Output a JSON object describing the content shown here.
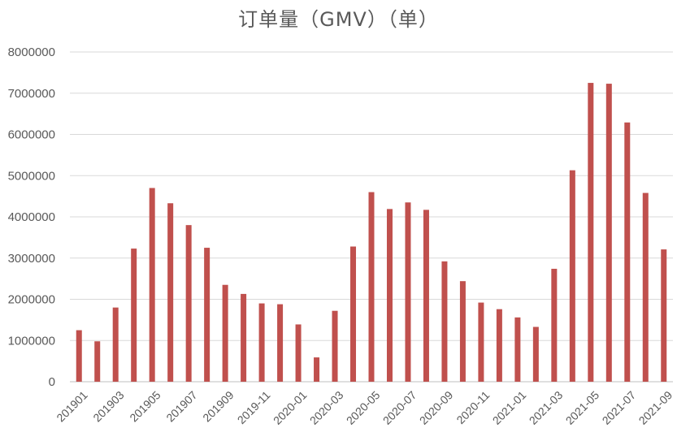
{
  "chart_data": {
    "type": "bar",
    "title": "订单量（GMV）（单）",
    "xlabel": "",
    "ylabel": "",
    "ylim": [
      0,
      8000000
    ],
    "yticks": [
      0,
      1000000,
      2000000,
      3000000,
      4000000,
      5000000,
      6000000,
      7000000,
      8000000
    ],
    "grid": true,
    "legend": "none",
    "bar_color": "#c0504d",
    "categories": [
      "201901",
      "201902",
      "201903",
      "201904",
      "201905",
      "201906",
      "201907",
      "201908",
      "201909",
      "201910",
      "2019-11",
      "2019-12",
      "2020-01",
      "2020-02",
      "2020-03",
      "2020-04",
      "2020-05",
      "2020-06",
      "2020-07",
      "2020-08",
      "2020-09",
      "2020-10",
      "2020-11",
      "2020-12",
      "2021-01",
      "2021-02",
      "2021-03",
      "2021-04",
      "2021-05",
      "2021-06",
      "2021-07",
      "2021-08",
      "2021-09"
    ],
    "xtick_labels_shown": [
      "201901",
      "201903",
      "201905",
      "201907",
      "201909",
      "2019-11",
      "2020-01",
      "2020-03",
      "2020-05",
      "2020-07",
      "2020-09",
      "2020-11",
      "2021-01",
      "2021-03",
      "2021-05",
      "2021-07",
      "2021-09"
    ],
    "values": [
      1250000,
      980000,
      1800000,
      3230000,
      4700000,
      4330000,
      3800000,
      3250000,
      2350000,
      2130000,
      1900000,
      1880000,
      1390000,
      590000,
      1720000,
      3280000,
      4600000,
      4190000,
      4350000,
      4170000,
      2920000,
      2440000,
      1920000,
      1760000,
      1560000,
      1330000,
      2740000,
      5130000,
      7250000,
      7230000,
      6290000,
      4580000,
      3210000
    ]
  }
}
